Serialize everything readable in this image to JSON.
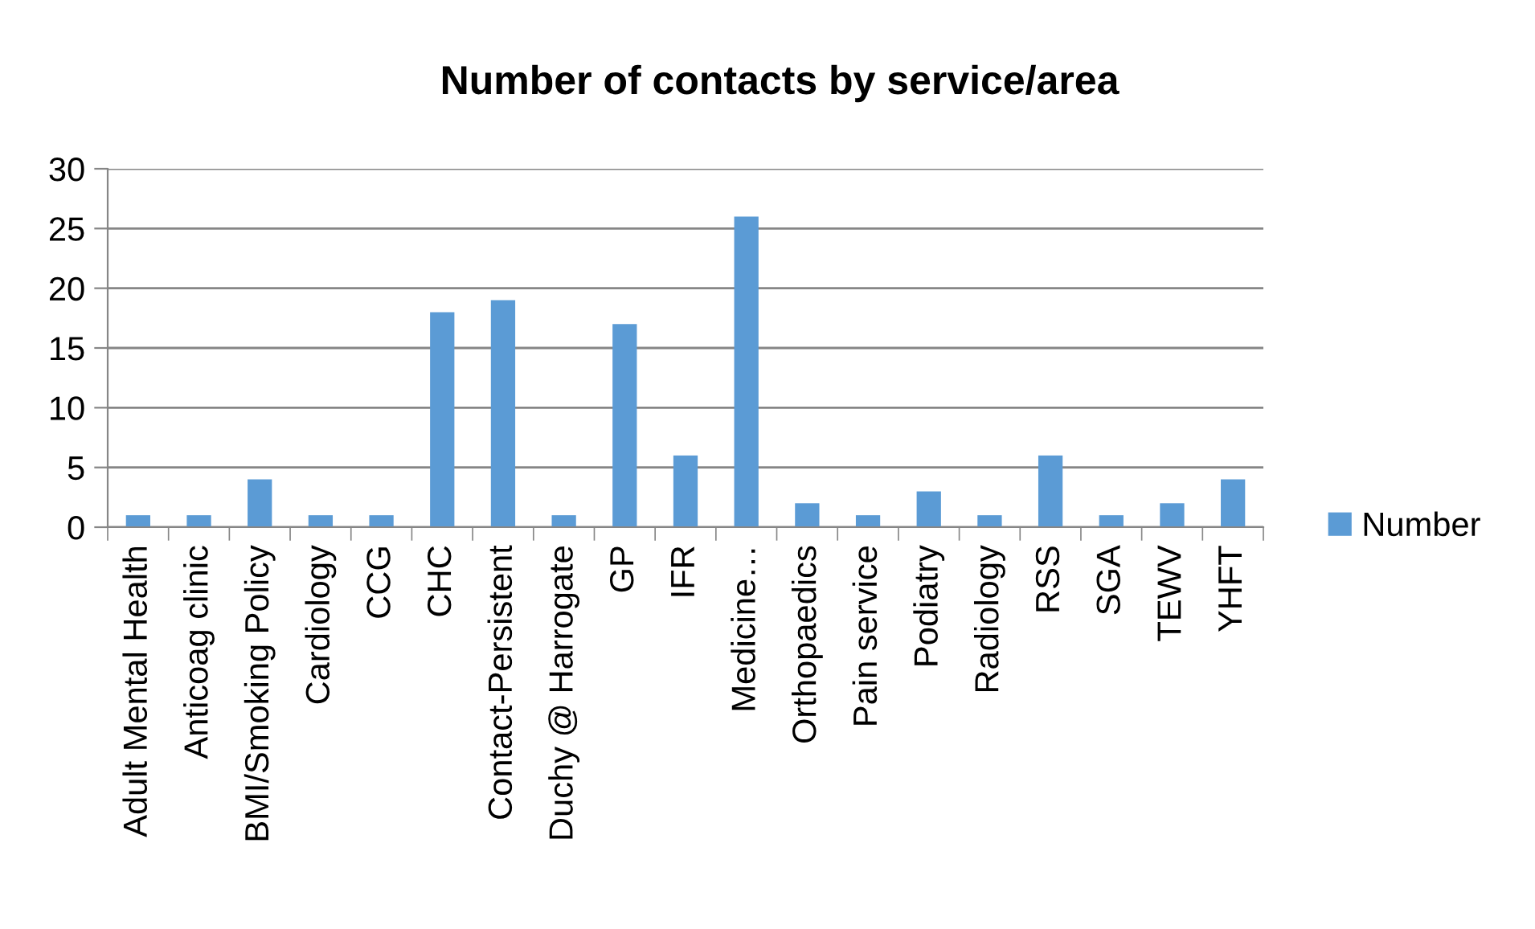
{
  "chart_data": {
    "type": "bar",
    "title": "Number of contacts by service/area",
    "categories": [
      "Adult Mental Health",
      "Anticoag clinic",
      "BMI/Smoking Policy",
      "Cardiology",
      "CCG",
      "CHC",
      "Contact-Persistent",
      "Duchy @ Harrogate",
      "GP",
      "IFR",
      "Medicine…",
      "Orthopaedics",
      "Pain service",
      "Podiatry",
      "Radiology",
      "RSS",
      "SGA",
      "TEWV",
      "YHFT"
    ],
    "series": [
      {
        "name": "Number",
        "color": "#5b9bd5",
        "values": [
          1,
          1,
          4,
          1,
          1,
          18,
          19,
          1,
          17,
          6,
          26,
          2,
          1,
          3,
          1,
          6,
          1,
          2,
          4
        ]
      }
    ],
    "ylim": [
      0,
      30
    ],
    "yticks": [
      0,
      5,
      10,
      15,
      20,
      25,
      30
    ],
    "grid": "y",
    "legend": "right"
  }
}
